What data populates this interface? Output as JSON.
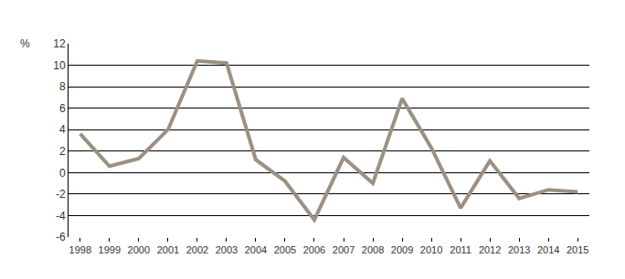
{
  "chart_data": {
    "type": "line",
    "y_label": "%",
    "categories": [
      "1998",
      "1999",
      "2000",
      "2001",
      "2002",
      "2003",
      "2004",
      "2005",
      "2006",
      "2007",
      "2008",
      "2009",
      "2010",
      "2011",
      "2012",
      "2013",
      "2014",
      "2015"
    ],
    "values": [
      3.6,
      0.6,
      1.3,
      4.0,
      10.4,
      10.2,
      1.2,
      -0.8,
      -4.4,
      1.4,
      -1.0,
      6.9,
      2.3,
      -3.3,
      1.1,
      -2.4,
      -1.6,
      -1.8
    ],
    "color": "#9b9081",
    "ylim": [
      -6,
      12
    ],
    "yticks": [
      -6,
      -4,
      -2,
      0,
      2,
      4,
      6,
      8,
      10,
      12
    ],
    "grid": true
  }
}
